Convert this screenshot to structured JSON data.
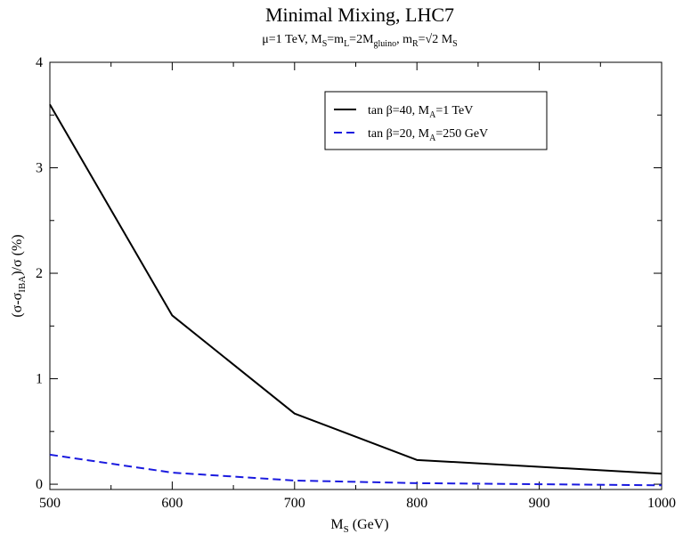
{
  "chart_data": {
    "type": "line",
    "title": "Minimal Mixing, LHC7",
    "subtitle": {
      "mu": "μ=1 TeV, M",
      "mu_sub": "S",
      "ms": "=m",
      "ms_sub": "L",
      "ml": "=2M",
      "ml_sub": "gluino",
      "mr": ", m",
      "mr_sub": "R",
      "mr2": "=√2 M",
      "mr2_sub": "S"
    },
    "xlabel": {
      "main": "M",
      "sub": "S",
      "rest": " (GeV)"
    },
    "ylabel": {
      "main": "(σ-σ",
      "sub": "IBA",
      "rest": ")/σ (%)"
    },
    "xlim": [
      500,
      1000
    ],
    "ylim": [
      -0.05,
      4
    ],
    "x_ticks": [
      500,
      600,
      700,
      800,
      900,
      1000
    ],
    "y_ticks": [
      0,
      1,
      2,
      3,
      4
    ],
    "grid": false,
    "legend_position": "top-right",
    "series": [
      {
        "name": {
          "a": "tan β=40, M",
          "sub": "A",
          "b": "=1 TeV"
        },
        "color": "#000000",
        "dash": "solid",
        "x": [
          500,
          600,
          700,
          800,
          1000
        ],
        "y": [
          3.6,
          1.6,
          0.67,
          0.23,
          0.1
        ]
      },
      {
        "name": {
          "a": "tan β=20, M",
          "sub": "A",
          "b": "=250 GeV"
        },
        "color": "#1a1adf",
        "dash": "dashed",
        "x": [
          500,
          600,
          700,
          800,
          900,
          1000
        ],
        "y": [
          0.28,
          0.11,
          0.035,
          0.01,
          0.0,
          -0.01
        ]
      }
    ]
  }
}
